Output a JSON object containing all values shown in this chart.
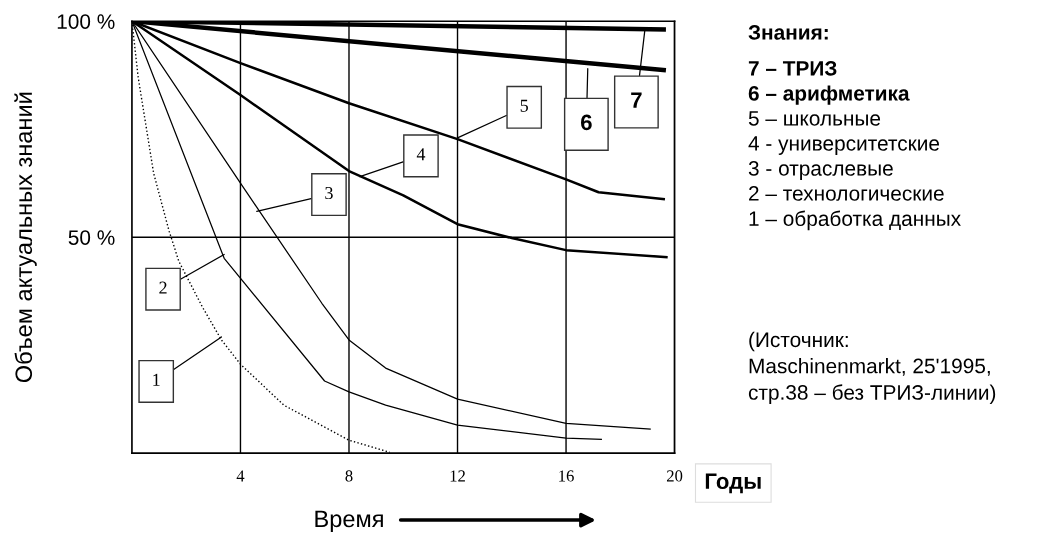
{
  "chart_data": {
    "type": "line",
    "xlabel": "Время",
    "ylabel": "Объем актуальных знаний",
    "xlim": [
      0,
      20
    ],
    "ylim": [
      0,
      100
    ],
    "xticks": [
      4,
      8,
      12,
      16,
      20
    ],
    "yticks": [
      {
        "value": 50,
        "label": "50 %"
      },
      {
        "value": 100,
        "label": "100 %"
      }
    ],
    "grid": true,
    "legend": false,
    "marker": "none",
    "series": [
      {
        "color": "#000000",
        "line_style": "dotted",
        "x": [
          0,
          0.23,
          0.8,
          1.37,
          1.73,
          2.6,
          3.3,
          4,
          5.6,
          8,
          9.5
        ],
        "values": [
          100,
          87,
          64.8,
          51.4,
          44.4,
          33.8,
          26.2,
          20.6,
          11.1,
          3,
          0.2
        ]
      },
      {
        "color": "#000000",
        "line_style": "solid",
        "x": [
          0,
          3.4,
          7.1,
          8,
          9.35,
          12,
          16,
          17.3
        ],
        "values": [
          100,
          45.1,
          16.7,
          14.2,
          11.1,
          6.5,
          3.5,
          3.2
        ]
      },
      {
        "color": "#000000",
        "line_style": "solid",
        "x": [
          0,
          4,
          7,
          8,
          9.35,
          12,
          16,
          19.1
        ],
        "values": [
          100,
          62.5,
          34.7,
          26.2,
          19.7,
          12.5,
          6.9,
          5.6
        ]
      },
      {
        "color": "#000000",
        "line_style": "solid",
        "x": [
          0,
          4,
          8,
          10,
          12,
          14,
          16,
          19.7
        ],
        "values": [
          100,
          82.9,
          65.3,
          59.7,
          53,
          49.8,
          47,
          45.4
        ]
      },
      {
        "color": "#000000",
        "line_style": "solid",
        "x": [
          0,
          4,
          8,
          12,
          16,
          17.2,
          19.6
        ],
        "values": [
          100,
          90.3,
          81,
          72.7,
          63.4,
          60.4,
          58.8
        ]
      },
      {
        "color": "#000000",
        "line_style": "solid",
        "x": [
          0,
          19.6
        ],
        "values": [
          100,
          88.7
        ]
      },
      {
        "color": "#000000",
        "line_style": "solid",
        "x": [
          0,
          19.6
        ],
        "values": [
          100,
          98.1
        ]
      }
    ],
    "annotations": [
      {
        "text": "1",
        "x": 3.3,
        "y": 26.9
      },
      {
        "text": "2",
        "x": 3.4,
        "y": 46
      },
      {
        "text": "3",
        "x": 4.6,
        "y": 56
      },
      {
        "text": "4",
        "x": 8.4,
        "y": 64
      },
      {
        "text": "5",
        "x": 12,
        "y": 73
      },
      {
        "text": "6",
        "x": 16.8,
        "y": 89
      },
      {
        "text": "7",
        "x": 18.9,
        "y": 97.7
      },
      "Знания:",
      "7 – ТРИЗ",
      "6 – арифметика",
      "5 – школьные",
      "4 - университетские",
      "3 - отраслевые",
      "2 – технологические",
      "1 – обработка данных",
      "(Источник:\nMaschinenmarkt, 25'1995,\nстр.38 – без ТРИЗ-линии)",
      "Годы"
    ]
  }
}
